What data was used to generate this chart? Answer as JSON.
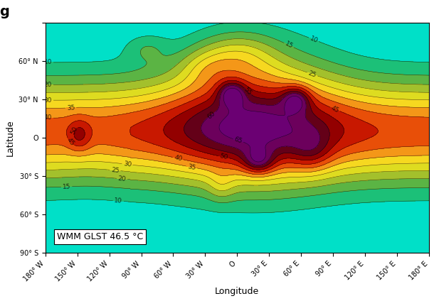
{
  "title_letter": "g",
  "annotation": "WMM GLST 46.5 °C",
  "xlabel": "Longitude",
  "ylabel": "Latitude",
  "lon_ticks": [
    -180,
    -150,
    -120,
    -90,
    -60,
    -30,
    0,
    30,
    60,
    90,
    120,
    150,
    180
  ],
  "lon_labels": [
    "180° W",
    "150° W",
    "120° W",
    "90° W",
    "60° W",
    "30° W",
    "O",
    "30° E",
    "60° E",
    "90° E",
    "120° E",
    "150° E",
    "180° E"
  ],
  "lat_ticks": [
    90,
    60,
    30,
    0,
    -30,
    -60,
    -90
  ],
  "lat_labels": [
    "",
    "60° N",
    "30° N",
    "O",
    "30° S",
    "60° S",
    "90° S"
  ],
  "contour_levels": [
    5,
    10,
    15,
    20,
    25,
    30,
    35,
    40,
    45,
    50,
    55,
    60,
    65,
    70
  ],
  "clabel_levels": [
    10,
    15,
    20,
    25,
    30,
    35,
    40,
    45,
    50,
    55,
    60,
    65
  ],
  "color_stops_norm": [
    [
      0.0,
      "#00EEEE"
    ],
    [
      0.077,
      "#00D0A0"
    ],
    [
      0.154,
      "#38B050"
    ],
    [
      0.231,
      "#80B838"
    ],
    [
      0.308,
      "#C8C820"
    ],
    [
      0.385,
      "#F5F020"
    ],
    [
      0.462,
      "#F8C020"
    ],
    [
      0.538,
      "#F07010"
    ],
    [
      0.615,
      "#E03000"
    ],
    [
      0.692,
      "#B00000"
    ],
    [
      0.769,
      "#780000"
    ],
    [
      0.846,
      "#500030"
    ],
    [
      0.923,
      "#880088"
    ],
    [
      1.0,
      "#500060"
    ]
  ],
  "vmin": 5,
  "vmax": 70,
  "figsize": [
    6.1,
    4.24
  ],
  "dpi": 100
}
